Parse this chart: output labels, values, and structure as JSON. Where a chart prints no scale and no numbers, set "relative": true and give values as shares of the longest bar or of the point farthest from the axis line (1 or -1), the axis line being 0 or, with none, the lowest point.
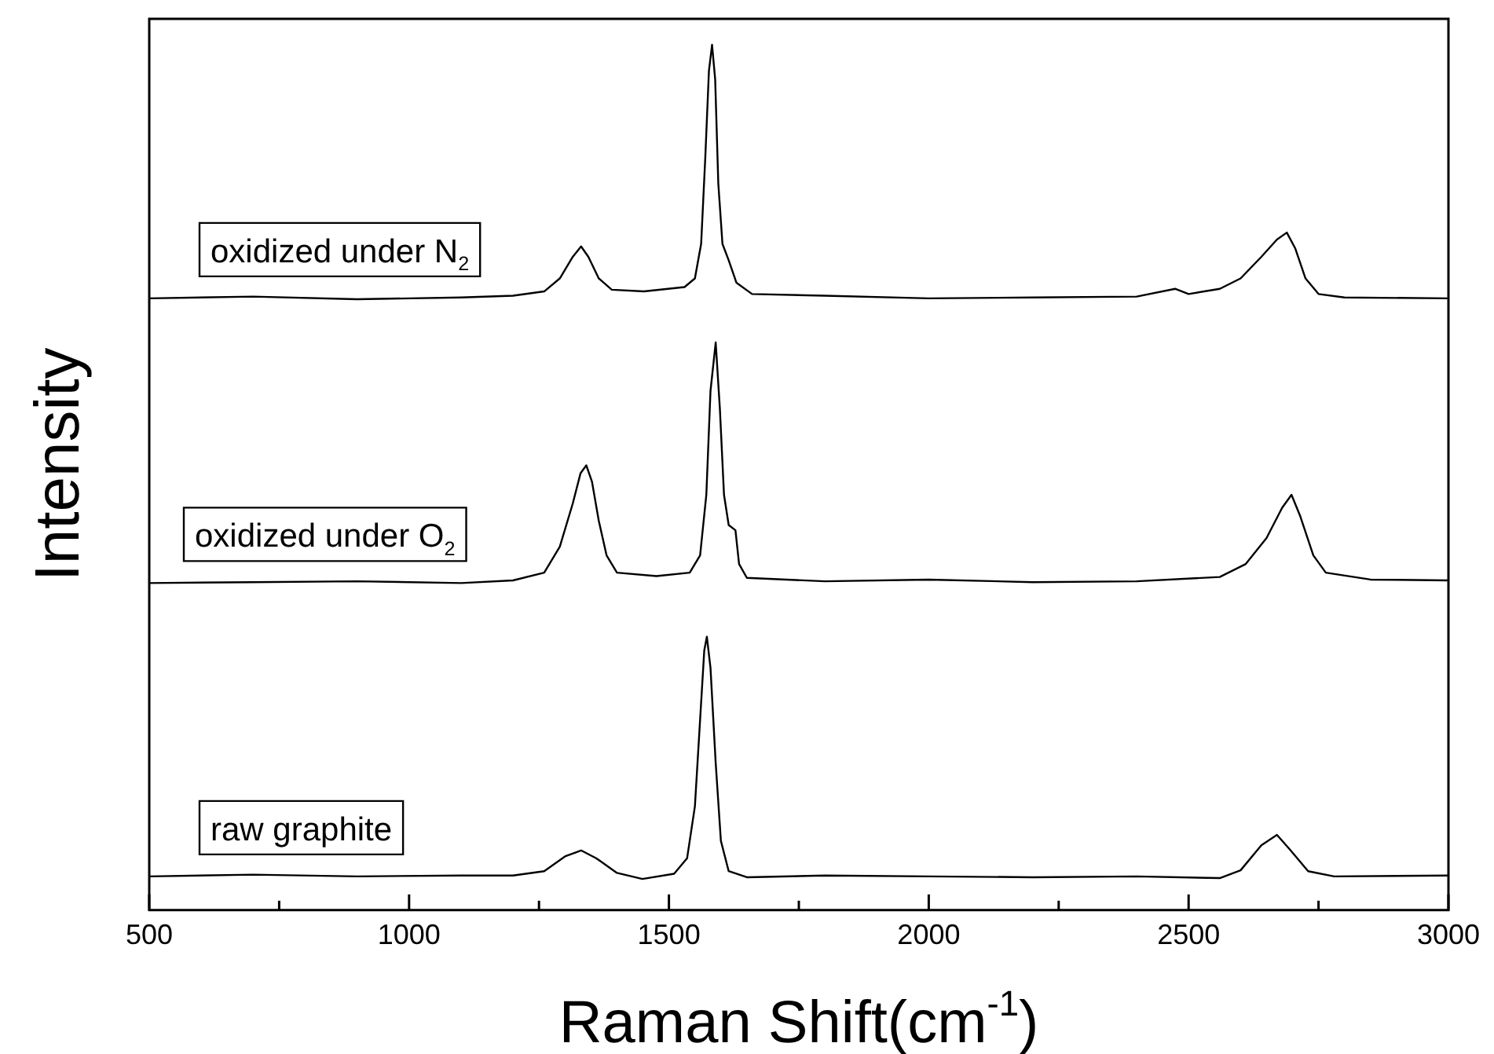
{
  "chart_data": {
    "type": "line",
    "xlabel": "Raman Shift(cm$^{-1}$)",
    "ylabel": "Intensity",
    "relative": true,
    "legend": false,
    "grid": false,
    "marker": "none",
    "line_style": "solid",
    "xlim": [
      500,
      3000
    ],
    "xticks": [
      500,
      {
        "value": 750,
        "label": null
      },
      1000,
      {
        "value": 1250,
        "label": null
      },
      1500,
      {
        "value": 1750,
        "label": null
      },
      2000,
      {
        "value": 2250,
        "label": null
      },
      2500,
      {
        "value": 2750,
        "label": null
      },
      3000
    ],
    "series": [
      {
        "name": "oxidized under N$_{2}$",
        "color": "#000000",
        "x": [
          500,
          700,
          900,
          1100,
          1200,
          1260,
          1290,
          1315,
          1331,
          1345,
          1365,
          1390,
          1452,
          1530,
          1550,
          1562,
          1570,
          1577,
          1583,
          1589,
          1595,
          1603,
          1615,
          1630,
          1660,
          1800,
          2000,
          2200,
          2400,
          2474,
          2500,
          2560,
          2600,
          2640,
          2670,
          2689,
          2705,
          2725,
          2750,
          2800,
          3000
        ],
        "values": [
          0.707,
          0.709,
          0.706,
          0.708,
          0.71,
          0.715,
          0.73,
          0.755,
          0.767,
          0.755,
          0.73,
          0.717,
          0.715,
          0.72,
          0.73,
          0.77,
          0.87,
          0.97,
          1.0,
          0.96,
          0.84,
          0.77,
          0.751,
          0.725,
          0.712,
          0.71,
          0.707,
          0.708,
          0.709,
          0.718,
          0.712,
          0.718,
          0.73,
          0.755,
          0.775,
          0.783,
          0.765,
          0.73,
          0.712,
          0.708,
          0.707
        ]
      },
      {
        "name": "oxidized under O$_{2}$",
        "color": "#000000",
        "x": [
          500,
          700,
          900,
          1100,
          1200,
          1260,
          1290,
          1315,
          1330,
          1341,
          1352,
          1365,
          1380,
          1400,
          1476,
          1540,
          1560,
          1572,
          1580,
          1590,
          1598,
          1606,
          1615,
          1628,
          1635,
          1650,
          1800,
          2000,
          2200,
          2400,
          2560,
          2610,
          2650,
          2680,
          2698,
          2715,
          2740,
          2764,
          2850,
          3000
        ],
        "values": [
          0.378,
          0.379,
          0.38,
          0.378,
          0.381,
          0.39,
          0.42,
          0.47,
          0.505,
          0.514,
          0.495,
          0.45,
          0.41,
          0.39,
          0.386,
          0.39,
          0.41,
          0.48,
          0.6,
          0.656,
          0.58,
          0.48,
          0.445,
          0.439,
          0.4,
          0.384,
          0.38,
          0.382,
          0.379,
          0.38,
          0.385,
          0.4,
          0.43,
          0.465,
          0.48,
          0.455,
          0.41,
          0.39,
          0.382,
          0.381
        ]
      },
      {
        "name": "raw graphite",
        "color": "#000000",
        "x": [
          500,
          700,
          900,
          1100,
          1200,
          1260,
          1300,
          1331,
          1360,
          1400,
          1449,
          1510,
          1535,
          1550,
          1560,
          1568,
          1573,
          1580,
          1590,
          1600,
          1615,
          1650,
          1800,
          2000,
          2200,
          2400,
          2560,
          2600,
          2640,
          2670,
          2695,
          2730,
          2780,
          3000
        ],
        "values": [
          0.039,
          0.041,
          0.039,
          0.04,
          0.04,
          0.045,
          0.062,
          0.069,
          0.06,
          0.043,
          0.036,
          0.042,
          0.06,
          0.12,
          0.22,
          0.3,
          0.316,
          0.28,
          0.17,
          0.08,
          0.045,
          0.038,
          0.04,
          0.039,
          0.038,
          0.039,
          0.037,
          0.046,
          0.075,
          0.087,
          0.07,
          0.045,
          0.039,
          0.04
        ]
      }
    ]
  }
}
